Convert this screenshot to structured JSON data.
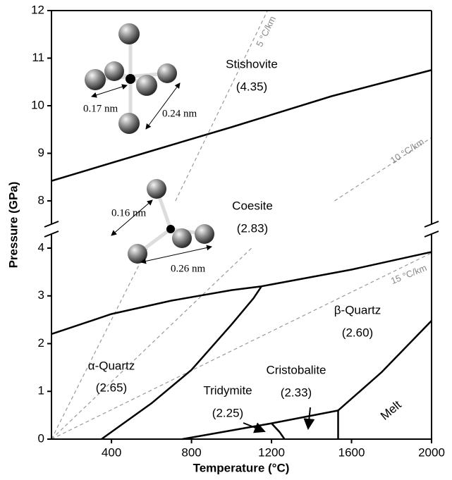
{
  "chart_data": {
    "type": "line",
    "xlabel": "Temperature (°C)",
    "ylabel": "Pressure (GPa)",
    "xlim": [
      100,
      2000
    ],
    "xticks": [
      400,
      800,
      1200,
      1600,
      2000
    ],
    "panels": [
      {
        "ylim": [
          8,
          12
        ],
        "yticks": [
          8,
          9,
          10,
          11,
          12
        ],
        "series": [
          {
            "color": "#000000",
            "dash": false,
            "x": [
              100,
              600,
              1000,
              1500,
              2000
            ],
            "values": [
              8.42,
              9.05,
              9.55,
              10.2,
              10.75
            ]
          },
          {
            "color": "#999999",
            "dash": true,
            "x": [
              720,
              1180
            ],
            "values": [
              8,
              12
            ]
          },
          {
            "color": "#999999",
            "dash": true,
            "x": [
              1515,
              2000
            ],
            "values": [
              8,
              9.33
            ]
          }
        ]
      },
      {
        "ylim": [
          0,
          4
        ],
        "yticks": [
          0,
          1,
          2,
          3,
          4
        ],
        "series": [
          {
            "color": "#999999",
            "dash": true,
            "x": [
              100,
              580
            ],
            "values": [
              0,
              4
            ]
          },
          {
            "color": "#999999",
            "dash": true,
            "x": [
              100,
              1100
            ],
            "values": [
              0,
              4
            ]
          },
          {
            "color": "#999999",
            "dash": true,
            "x": [
              100,
              2000
            ],
            "values": [
              0,
              3.9
            ]
          },
          {
            "color": "#000000",
            "dash": false,
            "x": [
              100,
              400,
              700,
              1000,
              1150
            ],
            "values": [
              2.2,
              2.62,
              2.9,
              3.12,
              3.2
            ]
          },
          {
            "color": "#000000",
            "dash": false,
            "x": [
              1150,
              1600,
              2000
            ],
            "values": [
              3.2,
              3.55,
              3.92
            ]
          },
          {
            "color": "#000000",
            "dash": false,
            "x": [
              1150,
              1110,
              1000,
              800,
              600,
              350
            ],
            "values": [
              3.2,
              2.95,
              2.4,
              1.45,
              0.75,
              0
            ]
          },
          {
            "color": "#000000",
            "dash": false,
            "x": [
              754,
              1200
            ],
            "values": [
              0,
              0.33
            ]
          },
          {
            "color": "#000000",
            "dash": false,
            "x": [
              1200,
              1533
            ],
            "values": [
              0.33,
              0.6
            ]
          },
          {
            "color": "#000000",
            "dash": false,
            "x": [
              1200,
              1240,
              1265
            ],
            "values": [
              0.33,
              0.15,
              0
            ]
          },
          {
            "color": "#000000",
            "dash": false,
            "x": [
              1533,
              1533
            ],
            "values": [
              0,
              0.6
            ]
          },
          {
            "color": "#000000",
            "dash": false,
            "x": [
              1533,
              1750,
              2000
            ],
            "values": [
              0.6,
              1.4,
              2.48
            ]
          }
        ]
      }
    ],
    "annotations": {
      "phases": [
        {
          "name": "Stishovite",
          "density": "(4.35)"
        },
        {
          "name": "Coesite",
          "density": "(2.83)"
        },
        {
          "name": "β-Quartz",
          "density": "(2.60)"
        },
        {
          "name": "α-Quartz",
          "density": "(2.65)"
        },
        {
          "name": "Tridymite",
          "density": "(2.25)"
        },
        {
          "name": "Cristobalite",
          "density": "(2.33)"
        },
        {
          "name": "Melt"
        }
      ],
      "geotherms": [
        "5 °C/km",
        "10 °C/km",
        "15 °C/km"
      ],
      "bond_lengths": [
        "0.17 nm",
        "0.24 nm",
        "0.16 nm",
        "0.26 nm"
      ]
    }
  }
}
